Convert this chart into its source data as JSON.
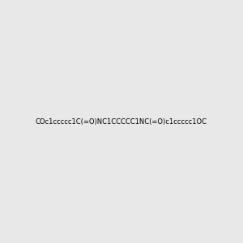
{
  "smiles": "COc1ccccc1C(=O)NC1CCCCC1NC(=O)c1ccccc1OC",
  "title": "",
  "background_color": "#e8e8e8",
  "bond_color": "#2d6e5e",
  "atom_colors": {
    "O": "#cc0000",
    "N": "#2222cc",
    "C": "#000000",
    "H": "#000000"
  },
  "figsize": [
    3.0,
    3.0
  ],
  "dpi": 100
}
